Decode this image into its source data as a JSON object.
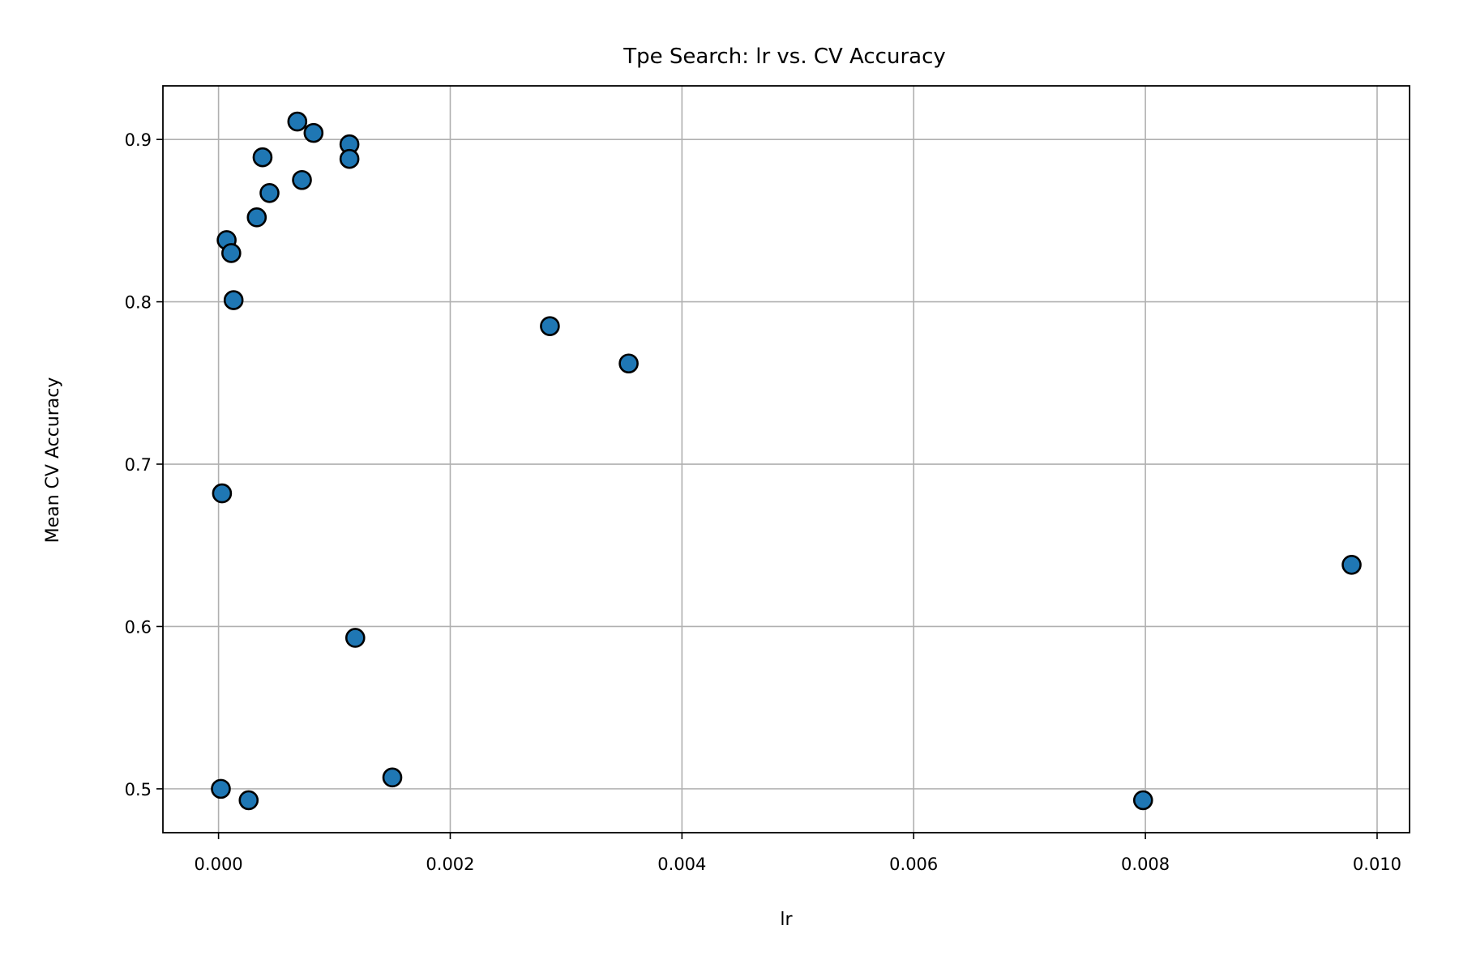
{
  "chart_data": {
    "type": "scatter",
    "title": "Tpe Search: lr vs. CV Accuracy",
    "xlabel": "lr",
    "ylabel": "Mean CV Accuracy",
    "xlim": [
      -0.00048,
      0.01028
    ],
    "ylim": [
      0.473,
      0.933
    ],
    "xticks": [
      0.0,
      0.002,
      0.004,
      0.006,
      0.008,
      0.01
    ],
    "xtick_labels": [
      "0.000",
      "0.002",
      "0.004",
      "0.006",
      "0.008",
      "0.010"
    ],
    "yticks": [
      0.5,
      0.6,
      0.7,
      0.8,
      0.9
    ],
    "ytick_labels": [
      "0.5",
      "0.6",
      "0.7",
      "0.8",
      "0.9"
    ],
    "grid": true,
    "marker_color": "#1f77b4",
    "marker_edge_color": "#000000",
    "points": [
      {
        "x": 0.00068,
        "y": 0.911
      },
      {
        "x": 0.00082,
        "y": 0.904
      },
      {
        "x": 0.00113,
        "y": 0.897
      },
      {
        "x": 0.00113,
        "y": 0.888
      },
      {
        "x": 0.00038,
        "y": 0.889
      },
      {
        "x": 0.00072,
        "y": 0.875
      },
      {
        "x": 0.00044,
        "y": 0.867
      },
      {
        "x": 0.00033,
        "y": 0.852
      },
      {
        "x": 7e-05,
        "y": 0.838
      },
      {
        "x": 0.00011,
        "y": 0.83
      },
      {
        "x": 0.00013,
        "y": 0.801
      },
      {
        "x": 0.00286,
        "y": 0.785
      },
      {
        "x": 0.00354,
        "y": 0.762
      },
      {
        "x": 3e-05,
        "y": 0.682
      },
      {
        "x": 0.00978,
        "y": 0.638
      },
      {
        "x": 0.00118,
        "y": 0.593
      },
      {
        "x": 0.0015,
        "y": 0.507
      },
      {
        "x": 2e-05,
        "y": 0.5
      },
      {
        "x": 0.00026,
        "y": 0.493
      },
      {
        "x": 0.00798,
        "y": 0.493
      }
    ]
  }
}
